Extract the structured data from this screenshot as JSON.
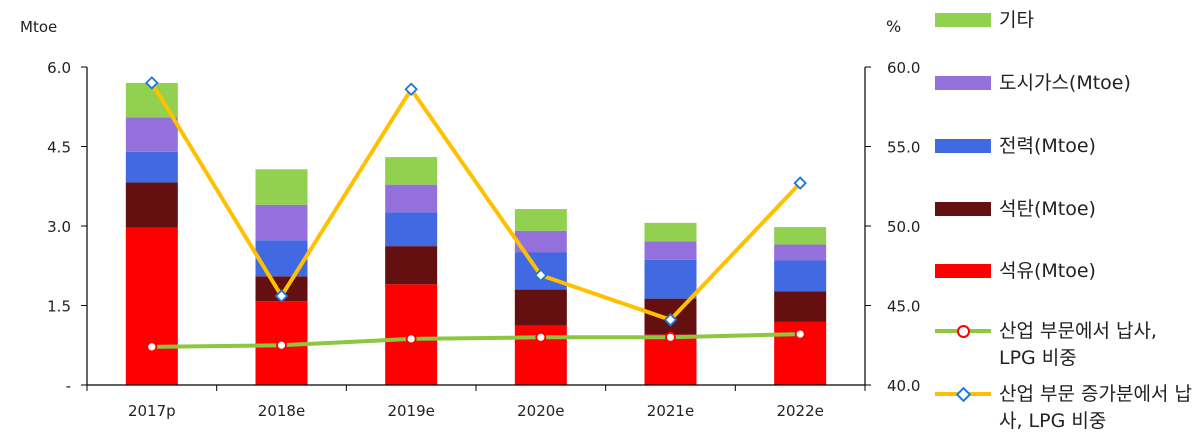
{
  "chart_data": {
    "type": "bar",
    "categories": [
      "2017p",
      "2018e",
      "2019e",
      "2020e",
      "2021e",
      "2022e"
    ],
    "y_left": {
      "unit_label": "Mtoe",
      "min": 0,
      "max": 6.0,
      "ticks": [
        0,
        1.5,
        3.0,
        4.5,
        6.0
      ],
      "tick_labels": [
        "-",
        "1.5",
        "3.0",
        "4.5",
        "6.0"
      ]
    },
    "y_right": {
      "unit_label": "%",
      "min": 40.0,
      "max": 60.0,
      "ticks": [
        40.0,
        45.0,
        50.0,
        55.0,
        60.0
      ],
      "tick_labels": [
        "40.0",
        "45.0",
        "50.0",
        "55.0",
        "60.0"
      ]
    },
    "stacked_series": [
      {
        "name": "석유(Mtoe)",
        "color": "#ff0000",
        "values": [
          2.97,
          1.58,
          1.9,
          1.12,
          0.95,
          1.19
        ]
      },
      {
        "name": "석탄(Mtoe)",
        "color": "#641010",
        "values": [
          0.85,
          0.47,
          0.72,
          0.68,
          0.68,
          0.58
        ]
      },
      {
        "name": "전력(Mtoe)",
        "color": "#4169e1",
        "values": [
          0.58,
          0.68,
          0.64,
          0.7,
          0.73,
          0.58
        ]
      },
      {
        "name": "도시가스(Mtoe)",
        "color": "#9370db",
        "values": [
          0.65,
          0.67,
          0.52,
          0.41,
          0.35,
          0.3
        ]
      },
      {
        "name": "기타",
        "color": "#92d050",
        "values": [
          0.65,
          0.67,
          0.52,
          0.41,
          0.35,
          0.33
        ]
      }
    ],
    "line_series": [
      {
        "name": "산업 부문에서 납사, LPG 비중",
        "color": "#8dc63f",
        "marker": "circle",
        "marker_stroke": "#ff0000",
        "axis": "right",
        "values": [
          42.4,
          42.5,
          42.9,
          43.0,
          43.0,
          43.2
        ]
      },
      {
        "name": "산업 부문 증가분에서 납사, LPG 비중",
        "color": "#ffc000",
        "marker": "diamond",
        "marker_stroke": "#1f77d4",
        "axis": "right",
        "values": [
          59.0,
          45.6,
          58.6,
          46.9,
          44.1,
          52.7
        ]
      }
    ]
  }
}
